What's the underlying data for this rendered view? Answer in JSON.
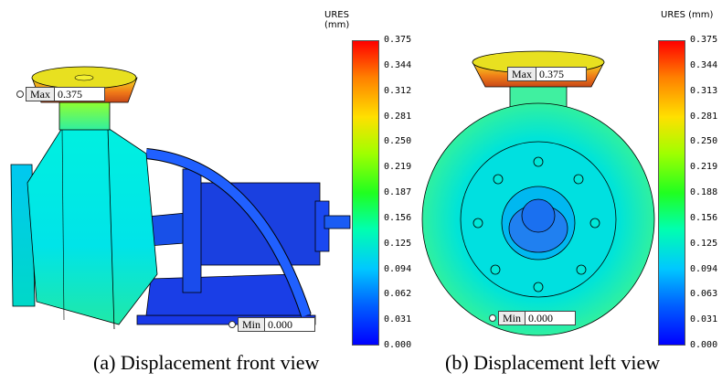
{
  "left_panel": {
    "caption": "(a) Displacement front view",
    "legend_title": "URES (mm)",
    "ticks": [
      "0.375",
      "0.344",
      "0.312",
      "0.281",
      "0.250",
      "0.219",
      "0.187",
      "0.156",
      "0.125",
      "0.094",
      "0.062",
      "0.031",
      "0.000"
    ],
    "max_label": "Max",
    "max_value": "0.375",
    "min_label": "Min",
    "min_value": "0.000"
  },
  "right_panel": {
    "caption": "(b) Displacement left view",
    "legend_title": "URES (mm)",
    "ticks": [
      "0.375",
      "0.344",
      "0.313",
      "0.281",
      "0.250",
      "0.219",
      "0.188",
      "0.156",
      "0.125",
      "0.094",
      "0.063",
      "0.031",
      "0.000"
    ],
    "max_label": "Max",
    "max_value": "0.375",
    "min_label": "Min",
    "min_value": "0.000"
  },
  "colors": {
    "max": "#ff0000",
    "mid": "#20ff20",
    "low": "#00d8e8",
    "min": "#0000ff"
  }
}
